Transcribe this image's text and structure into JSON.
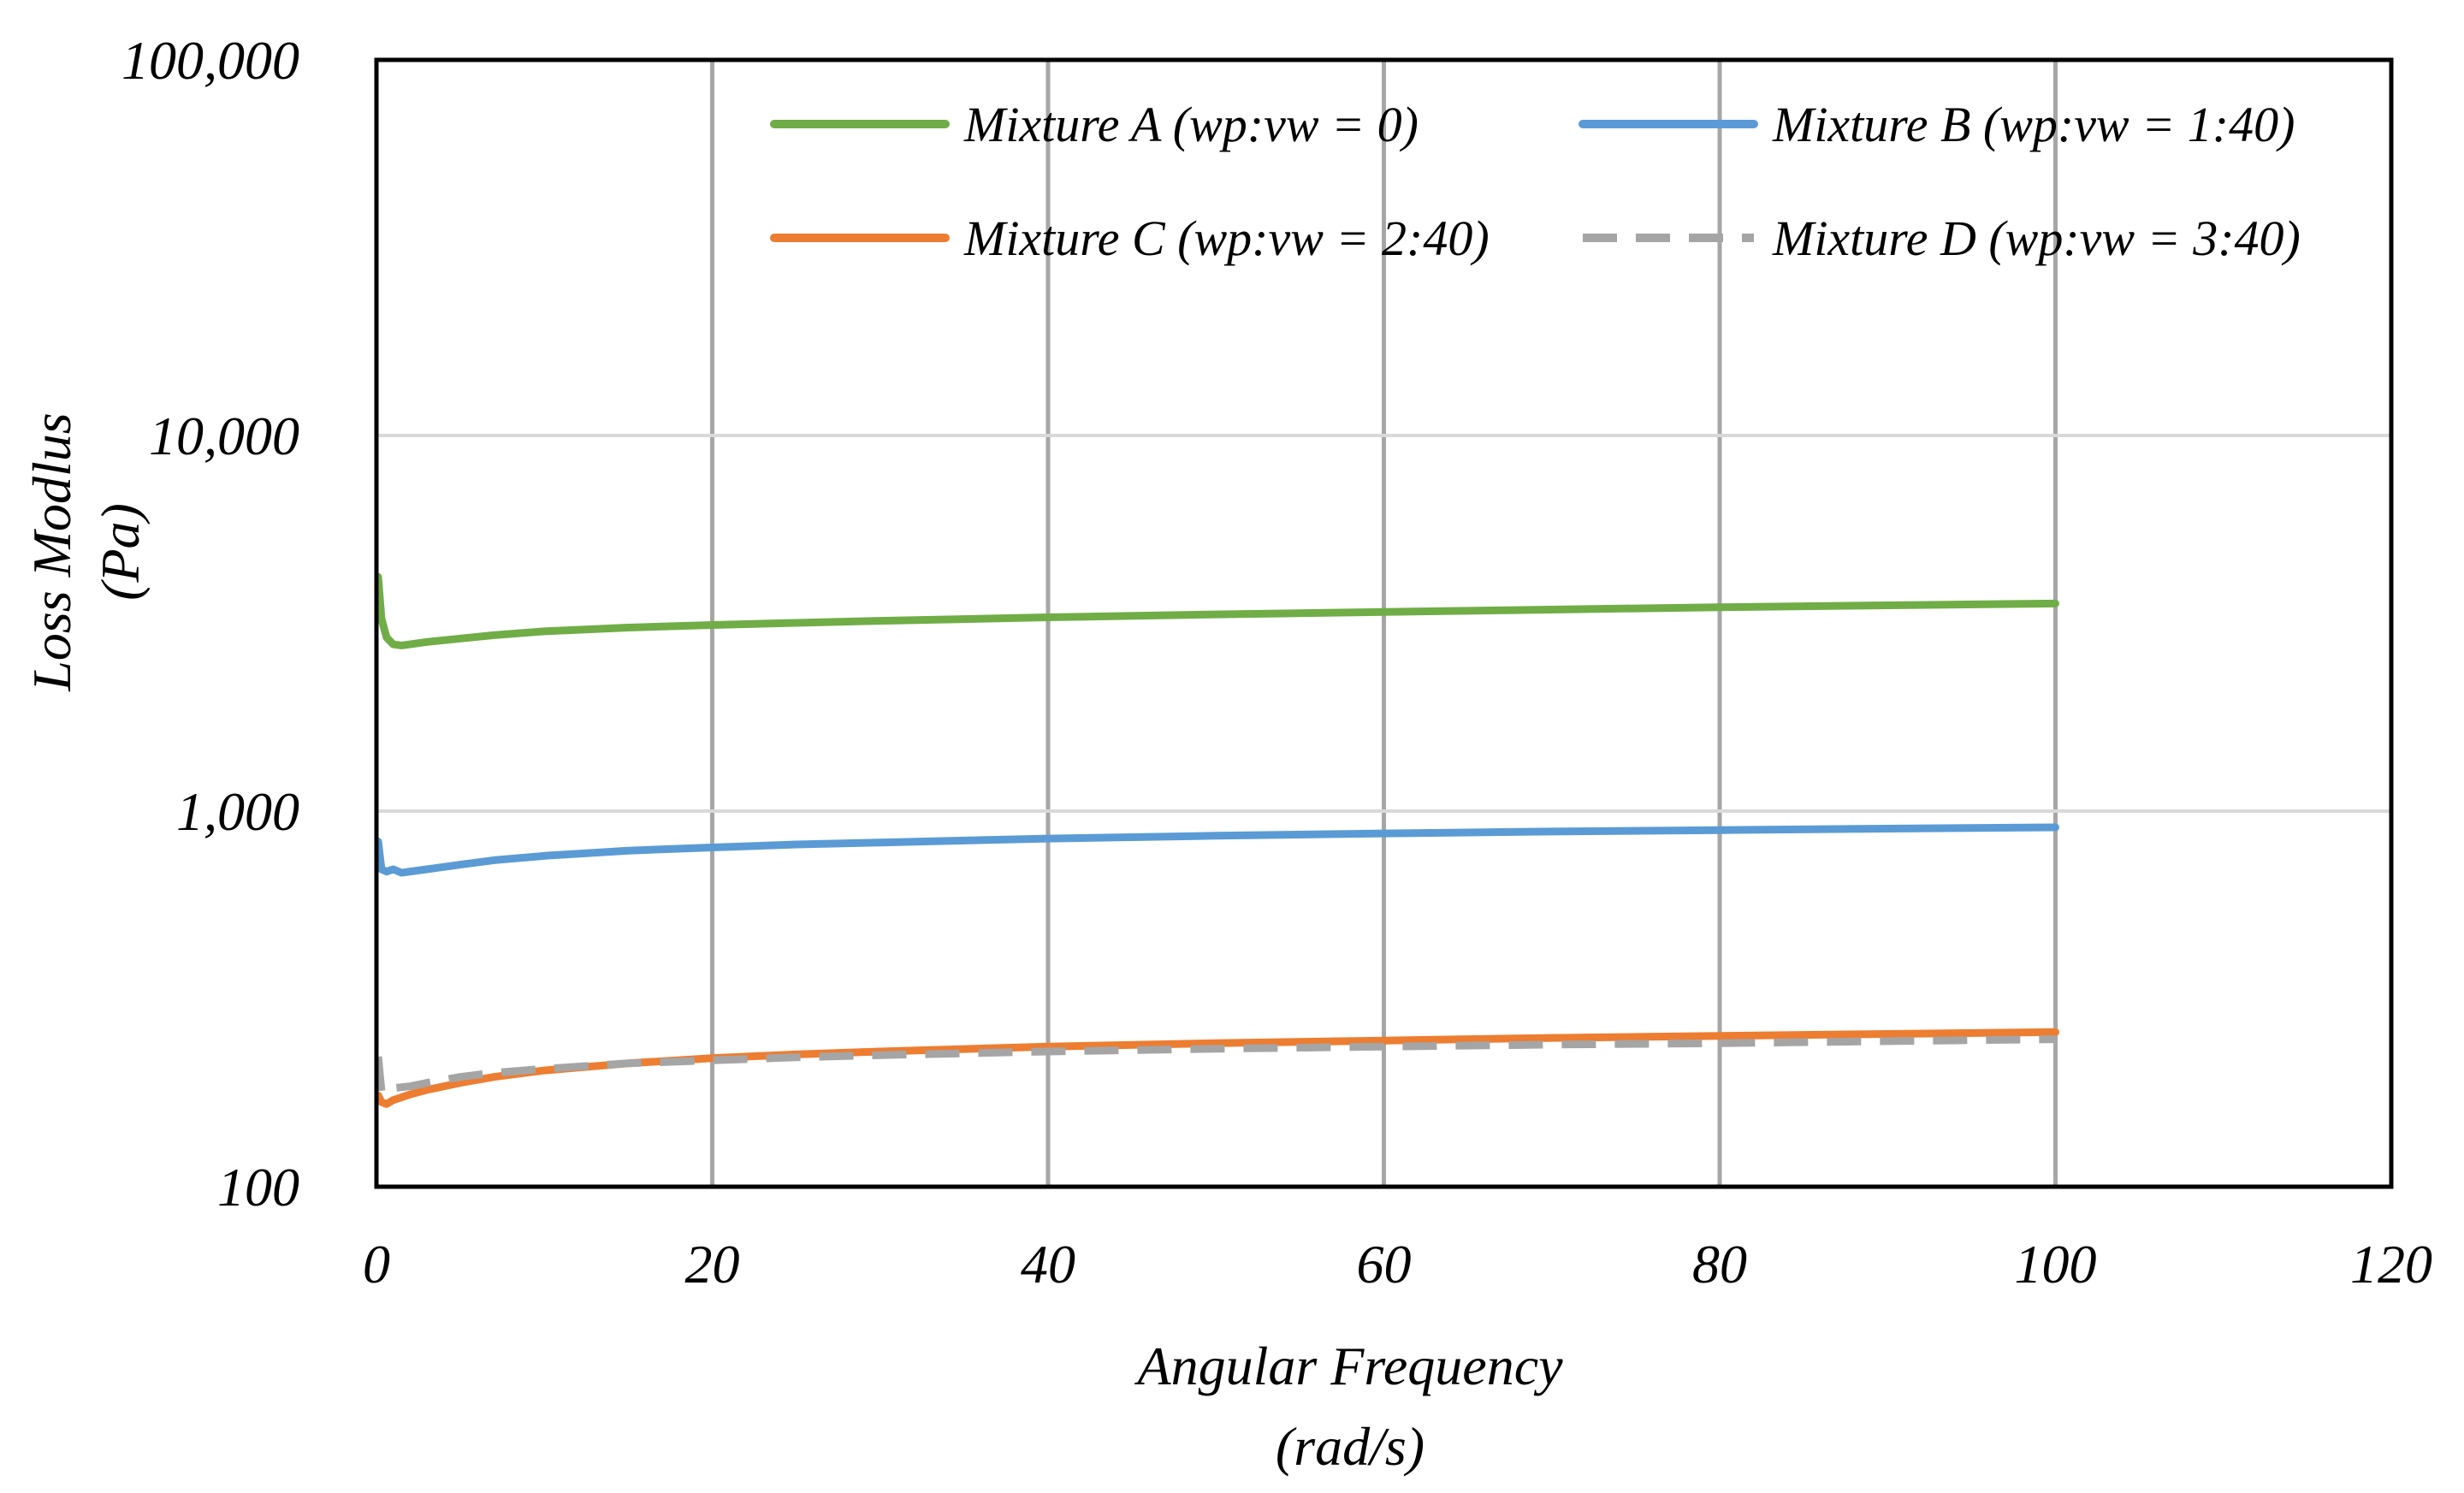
{
  "chart_data": {
    "type": "line",
    "title": "",
    "xlabel": [
      "Angular Frequency",
      "(rad/s)"
    ],
    "ylabel": [
      "Loss Modlus",
      "(Pa)"
    ],
    "xlim": [
      0,
      120
    ],
    "ylim": [
      100,
      100000
    ],
    "yscale": "log",
    "xticks": [
      0,
      20,
      40,
      60,
      80,
      100,
      120
    ],
    "xtick_labels": [
      "0",
      "20",
      "40",
      "60",
      "80",
      "100",
      "120"
    ],
    "yticks": [
      100,
      1000,
      10000,
      100000
    ],
    "ytick_labels": [
      "100",
      "1,000",
      "10,000",
      "100,000"
    ],
    "grid": {
      "x_major": true,
      "y_major": true
    },
    "legend": {
      "position": "top-right",
      "columns": 2
    },
    "series": [
      {
        "name": "Mixture A (wp:vw = 0)",
        "color": "#70ad47",
        "dash": "solid",
        "x": [
          0.1,
          0.3,
          0.6,
          1,
          1.5,
          2,
          3,
          5,
          7,
          10,
          15,
          20,
          25,
          30,
          40,
          50,
          60,
          70,
          80,
          90,
          100
        ],
        "y": [
          4200,
          3250,
          2900,
          2780,
          2760,
          2780,
          2820,
          2880,
          2940,
          3010,
          3080,
          3130,
          3170,
          3210,
          3280,
          3340,
          3390,
          3440,
          3490,
          3530,
          3570
        ]
      },
      {
        "name": "Mixture B (wp:vw = 1:40)",
        "color": "#5b9bd5",
        "dash": "solid",
        "x": [
          0.1,
          0.3,
          0.6,
          1,
          1.5,
          2,
          3,
          5,
          7,
          10,
          15,
          20,
          25,
          30,
          40,
          50,
          60,
          70,
          80,
          90,
          100
        ],
        "y": [
          830,
          700,
          690,
          700,
          685,
          690,
          700,
          720,
          740,
          760,
          785,
          800,
          815,
          825,
          845,
          860,
          872,
          882,
          890,
          898,
          905
        ]
      },
      {
        "name": "Mixture C (wp:vw = 2:40)",
        "color": "#ed7d31",
        "dash": "solid",
        "x": [
          0.1,
          0.3,
          0.6,
          1,
          1.5,
          2,
          3,
          5,
          7,
          10,
          15,
          20,
          25,
          30,
          40,
          50,
          60,
          70,
          80,
          90,
          100
        ],
        "y": [
          175,
          168,
          166,
          170,
          173,
          176,
          181,
          189,
          196,
          204,
          213,
          220,
          225,
          229,
          236,
          241,
          245,
          249,
          252,
          255,
          258
        ]
      },
      {
        "name": "Mixture D (wp:vw = 3:40)",
        "color": "#a5a5a5",
        "dash": "dashed",
        "x": [
          0.1,
          0.3,
          0.6,
          1,
          1.5,
          2,
          3,
          5,
          7,
          10,
          15,
          20,
          25,
          30,
          40,
          50,
          60,
          70,
          80,
          90,
          100
        ],
        "y": [
          222,
          180,
          176,
          183,
          184,
          185,
          189,
          196,
          201,
          206,
          213,
          217,
          221,
          224,
          229,
          233,
          236,
          239,
          241,
          244,
          247
        ]
      }
    ]
  }
}
